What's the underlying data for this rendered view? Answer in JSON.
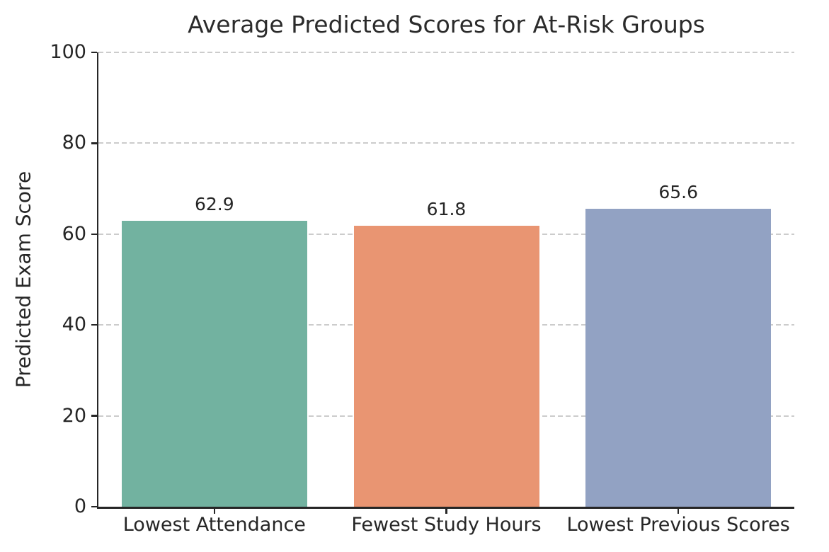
{
  "chart_data": {
    "type": "bar",
    "title": "Average Predicted Scores for At-Risk Groups",
    "xlabel": "",
    "ylabel": "Predicted Exam Score",
    "categories": [
      "Lowest Attendance",
      "Fewest Study Hours",
      "Lowest Previous Scores"
    ],
    "values": [
      62.9,
      61.8,
      65.6
    ],
    "value_labels": [
      "62.9",
      "61.8",
      "65.6"
    ],
    "bar_colors": [
      "#72b2a0",
      "#e99572",
      "#92a2c3"
    ],
    "ylim": [
      0,
      100
    ],
    "yticks": [
      0,
      20,
      40,
      60,
      80,
      100
    ],
    "grid": "horizontal-dashed",
    "legend": "none",
    "colors": {
      "background": "#ffffff",
      "text": "#262626",
      "spine": "#262626",
      "gridline": "#cccccc"
    }
  }
}
